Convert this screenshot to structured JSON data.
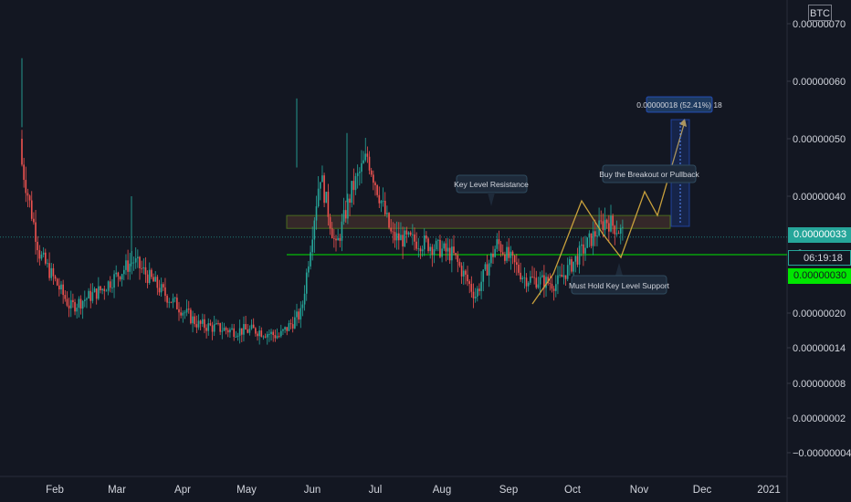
{
  "chart_data": {
    "type": "candlestick",
    "symbol": "BTC",
    "y_unit": "BTC",
    "ylim": [
      -5.25e-08,
      7.05e-08
    ],
    "y_ticks": [
      "0.00000070",
      "0.00000060",
      "0.00000050",
      "0.00000040",
      "0.00000020",
      "0.00000014",
      "0.00000008",
      "0.00000002",
      "−0.00000004"
    ],
    "x_ticks": [
      "Feb",
      "Mar",
      "Apr",
      "May",
      "Jun",
      "Jul",
      "Aug",
      "Sep",
      "Oct",
      "Nov",
      "Dec",
      "2021"
    ],
    "grid": false,
    "price_series_close_path": [
      [
        "Jan",
        5e-07
      ],
      [
        "Jan",
        4e-07
      ],
      [
        "Jan",
        3e-07
      ],
      [
        "Feb",
        2.1e-07
      ],
      [
        "Feb",
        2.4e-07
      ],
      [
        "Mar",
        2.9e-07
      ],
      [
        "Mar",
        2.3e-07
      ],
      [
        "Apr",
        1.8e-07
      ],
      [
        "Apr",
        1.7e-07
      ],
      [
        "May",
        1.7e-07
      ],
      [
        "May",
        1.6e-07
      ],
      [
        "May",
        2e-07
      ],
      [
        "Jun",
        4.4e-07
      ],
      [
        "Jun",
        3.1e-07
      ],
      [
        "Jun",
        4.1e-07
      ],
      [
        "Jun",
        4.7e-07
      ],
      [
        "Jul",
        3.3e-07
      ],
      [
        "Jul",
        3.2e-07
      ],
      [
        "Aug",
        3e-07
      ],
      [
        "Aug",
        2.3e-07
      ],
      [
        "Aug",
        3.2e-07
      ],
      [
        "Sep",
        2.6e-07
      ],
      [
        "Sep",
        2.5e-07
      ],
      [
        "Oct",
        3.1e-07
      ],
      [
        "Oct",
        3.6e-07
      ],
      [
        "Oct",
        3.3e-07
      ]
    ],
    "last_price": "0.00000033",
    "countdown": "06:19:18",
    "countdown_prefix": "0.",
    "support_price": "0.00000030",
    "annotations": {
      "resistance_label": "Key Level Resistance",
      "breakout_label": "Buy the Breakout or Pullback",
      "support_label": "Must Hold Key Level Support",
      "measure_label": "0.00000018 (52.41%) 18"
    },
    "resistance_zone": [
      3.45e-07,
      3.67e-07
    ],
    "support_level": 3e-07,
    "colors": {
      "up": "#26a69a",
      "down": "#ef5350",
      "support_line": "#00e600",
      "projection": "#c8a03c",
      "zone": "#4a6b1e"
    }
  }
}
